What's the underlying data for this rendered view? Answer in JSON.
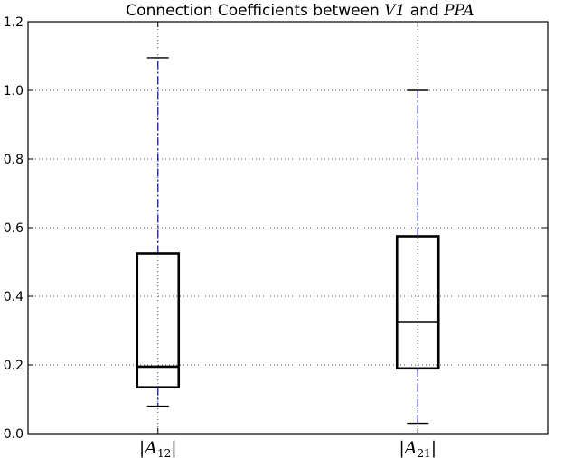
{
  "chart_data": {
    "type": "box",
    "title": {
      "prefix": "Connection Coefficients between ",
      "region1": "V1",
      "middle": " and ",
      "region2": "PPA"
    },
    "categories": [
      {
        "name": "|A12|",
        "base": "A",
        "subscript": "12"
      },
      {
        "name": "|A21|",
        "base": "A",
        "subscript": "21"
      }
    ],
    "boxes": [
      {
        "category": "|A12|",
        "whisker_low": 0.08,
        "q1": 0.135,
        "median": 0.195,
        "q3": 0.525,
        "whisker_high": 1.095
      },
      {
        "category": "|A21|",
        "whisker_low": 0.03,
        "q1": 0.19,
        "median": 0.325,
        "q3": 0.575,
        "whisker_high": 1.0
      }
    ],
    "ylim": [
      0.0,
      1.2
    ],
    "yticks": [
      0.0,
      0.2,
      0.4,
      0.6,
      0.8,
      1.0,
      1.2
    ],
    "ytick_labels": [
      "0.0",
      "0.2",
      "0.4",
      "0.6",
      "0.8",
      "1.0",
      "1.2"
    ],
    "grid": true,
    "xlabel": "",
    "ylabel": "",
    "colors": {
      "box": "#000000",
      "whisker": "#1a1aa6",
      "grid": "#555555",
      "axes": "#000000"
    }
  }
}
